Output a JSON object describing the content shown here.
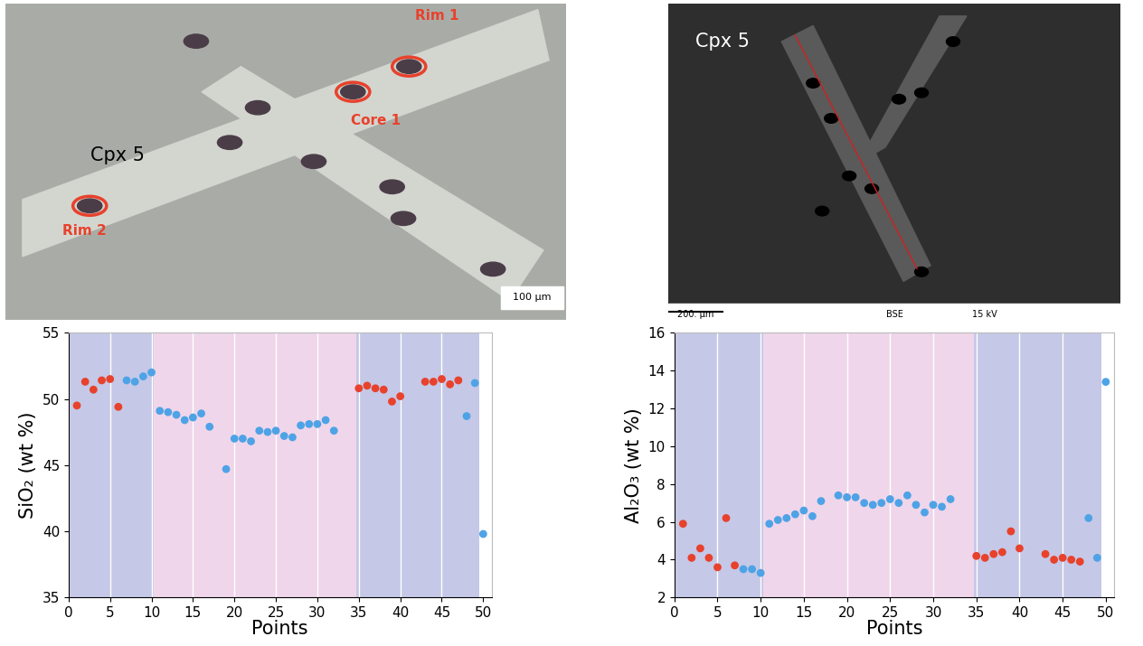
{
  "images": [
    {
      "labels": [
        "Cpx 5",
        "Rim 1",
        "Core 1",
        "Rim 2"
      ],
      "scale_bar": "100 µm"
    },
    {
      "labels": [
        "Cpx 5"
      ],
      "scale_bar": "200. µm",
      "footer": [
        "BSE",
        "15 kV"
      ]
    }
  ],
  "chart_data": [
    {
      "type": "scatter",
      "xlabel": "Points",
      "ylabel": "SiO₂ (wt %)",
      "x": [
        1,
        2,
        3,
        4,
        5,
        6,
        7,
        8,
        9,
        10,
        11,
        12,
        13,
        14,
        15,
        16,
        17,
        19,
        20,
        21,
        22,
        23,
        24,
        25,
        26,
        27,
        28,
        29,
        30,
        31,
        32,
        35,
        36,
        37,
        38,
        39,
        40,
        43,
        44,
        45,
        46,
        47,
        48,
        49,
        50
      ],
      "values": [
        49.5,
        51.3,
        50.7,
        51.4,
        51.5,
        49.4,
        51.4,
        51.3,
        51.7,
        52.0,
        49.1,
        49.0,
        48.8,
        48.4,
        48.6,
        48.9,
        47.9,
        44.7,
        47.0,
        47.0,
        46.8,
        47.6,
        47.5,
        47.6,
        47.2,
        47.1,
        48.0,
        48.1,
        48.1,
        48.4,
        47.6,
        50.8,
        51.0,
        50.8,
        50.7,
        49.8,
        50.2,
        51.3,
        51.3,
        51.5,
        51.1,
        51.4,
        48.7,
        51.2,
        39.8
      ],
      "colors": [
        "#e8412c",
        "#e8412c",
        "#e8412c",
        "#e8412c",
        "#e8412c",
        "#e8412c",
        "#4ea3e6",
        "#4ea3e6",
        "#4ea3e6",
        "#4ea3e6",
        "#4ea3e6",
        "#4ea3e6",
        "#4ea3e6",
        "#4ea3e6",
        "#4ea3e6",
        "#4ea3e6",
        "#4ea3e6",
        "#4ea3e6",
        "#4ea3e6",
        "#4ea3e6",
        "#4ea3e6",
        "#4ea3e6",
        "#4ea3e6",
        "#4ea3e6",
        "#4ea3e6",
        "#4ea3e6",
        "#4ea3e6",
        "#4ea3e6",
        "#4ea3e6",
        "#4ea3e6",
        "#4ea3e6",
        "#e8412c",
        "#e8412c",
        "#e8412c",
        "#e8412c",
        "#e8412c",
        "#e8412c",
        "#e8412c",
        "#e8412c",
        "#e8412c",
        "#e8412c",
        "#e8412c",
        "#4ea3e6",
        "#4ea3e6",
        "#4ea3e6"
      ],
      "xlim": [
        0,
        51
      ],
      "xticks": [
        0,
        5,
        10,
        15,
        20,
        25,
        30,
        35,
        40,
        45,
        50
      ],
      "ylim": [
        35,
        55
      ],
      "yticks": [
        35,
        40,
        45,
        50,
        55
      ],
      "grid": "x",
      "shaded_ranges": [
        {
          "from": 0,
          "to": 10.3,
          "color": "#c5c8e6"
        },
        {
          "from": 10.3,
          "to": 34.7,
          "color": "#f0d6ea"
        },
        {
          "from": 34.7,
          "to": 49.5,
          "color": "#c5c8e6"
        }
      ]
    },
    {
      "type": "scatter",
      "xlabel": "Points",
      "ylabel": "Al₂O₃ (wt %)",
      "x": [
        1,
        2,
        3,
        4,
        5,
        6,
        7,
        8,
        9,
        10,
        11,
        12,
        13,
        14,
        15,
        16,
        17,
        19,
        20,
        21,
        22,
        23,
        24,
        25,
        26,
        27,
        28,
        29,
        30,
        31,
        32,
        35,
        36,
        37,
        38,
        39,
        40,
        43,
        44,
        45,
        46,
        47,
        48,
        49,
        50
      ],
      "values": [
        5.9,
        4.1,
        4.6,
        4.1,
        3.6,
        6.2,
        3.7,
        3.5,
        3.5,
        3.3,
        5.9,
        6.1,
        6.2,
        6.4,
        6.6,
        6.3,
        7.1,
        7.4,
        7.3,
        7.3,
        7.0,
        6.9,
        7.0,
        7.2,
        7.0,
        7.4,
        6.9,
        6.5,
        6.9,
        6.8,
        7.2,
        4.2,
        4.1,
        4.3,
        4.4,
        5.5,
        4.6,
        4.3,
        4.0,
        4.1,
        4.0,
        3.9,
        6.2,
        4.1,
        13.4
      ],
      "colors": [
        "#e8412c",
        "#e8412c",
        "#e8412c",
        "#e8412c",
        "#e8412c",
        "#e8412c",
        "#e8412c",
        "#4ea3e6",
        "#4ea3e6",
        "#4ea3e6",
        "#4ea3e6",
        "#4ea3e6",
        "#4ea3e6",
        "#4ea3e6",
        "#4ea3e6",
        "#4ea3e6",
        "#4ea3e6",
        "#4ea3e6",
        "#4ea3e6",
        "#4ea3e6",
        "#4ea3e6",
        "#4ea3e6",
        "#4ea3e6",
        "#4ea3e6",
        "#4ea3e6",
        "#4ea3e6",
        "#4ea3e6",
        "#4ea3e6",
        "#4ea3e6",
        "#4ea3e6",
        "#4ea3e6",
        "#e8412c",
        "#e8412c",
        "#e8412c",
        "#e8412c",
        "#e8412c",
        "#e8412c",
        "#e8412c",
        "#e8412c",
        "#e8412c",
        "#e8412c",
        "#e8412c",
        "#4ea3e6",
        "#4ea3e6",
        "#4ea3e6"
      ],
      "xlim": [
        0,
        51
      ],
      "xticks": [
        0,
        5,
        10,
        15,
        20,
        25,
        30,
        35,
        40,
        45,
        50
      ],
      "ylim": [
        2,
        16
      ],
      "yticks": [
        2,
        4,
        6,
        8,
        10,
        12,
        14,
        16
      ],
      "grid": "x",
      "shaded_ranges": [
        {
          "from": 0,
          "to": 10.3,
          "color": "#c5c8e6"
        },
        {
          "from": 10.3,
          "to": 34.7,
          "color": "#f0d6ea"
        },
        {
          "from": 34.7,
          "to": 49.5,
          "color": "#c5c8e6"
        }
      ]
    }
  ]
}
